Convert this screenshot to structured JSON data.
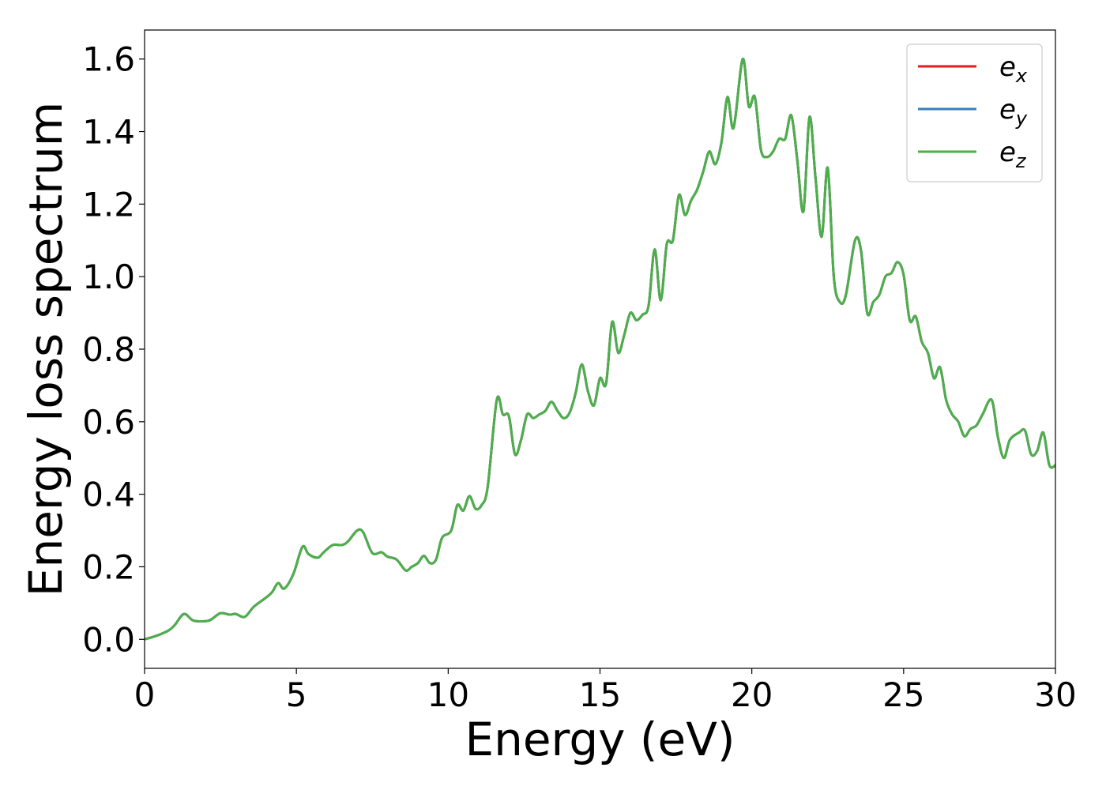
{
  "chart_data": {
    "type": "line",
    "title": "",
    "xlabel": "Energy (eV)",
    "ylabel": "Energy loss spectrum",
    "xlim": [
      0,
      30
    ],
    "ylim": [
      -0.08,
      1.68
    ],
    "x_ticks": [
      0,
      5,
      10,
      15,
      20,
      25,
      30
    ],
    "x_tick_labels": [
      "0",
      "5",
      "10",
      "15",
      "20",
      "25",
      "30"
    ],
    "y_ticks": [
      0.0,
      0.2,
      0.4,
      0.6,
      0.8,
      1.0,
      1.2,
      1.4,
      1.6
    ],
    "y_tick_labels": [
      "0.0",
      "0.2",
      "0.4",
      "0.6",
      "0.8",
      "1.0",
      "1.2",
      "1.4",
      "1.6"
    ],
    "grid": false,
    "legend_position": "top-right",
    "legend": [
      {
        "base": "e",
        "sub": "x"
      },
      {
        "base": "e",
        "sub": "y"
      },
      {
        "base": "e",
        "sub": "z"
      }
    ],
    "x": [
      0,
      0.4,
      0.8,
      1.0,
      1.3,
      1.6,
      2.0,
      2.2,
      2.5,
      2.8,
      3.0,
      3.3,
      3.6,
      4.0,
      4.2,
      4.4,
      4.6,
      4.9,
      5.2,
      5.4,
      5.7,
      5.9,
      6.2,
      6.5,
      6.7,
      7.0,
      7.2,
      7.5,
      7.8,
      8.0,
      8.3,
      8.6,
      8.8,
      9.0,
      9.2,
      9.4,
      9.6,
      9.8,
      10.1,
      10.3,
      10.5,
      10.7,
      10.9,
      11.1,
      11.3,
      11.6,
      11.8,
      12.0,
      12.2,
      12.4,
      12.6,
      12.8,
      13.0,
      13.2,
      13.4,
      13.6,
      13.8,
      14.0,
      14.2,
      14.4,
      14.6,
      14.8,
      15.0,
      15.2,
      15.4,
      15.6,
      15.8,
      16.0,
      16.2,
      16.4,
      16.6,
      16.8,
      17.0,
      17.2,
      17.4,
      17.6,
      17.8,
      18.0,
      18.2,
      18.4,
      18.6,
      18.8,
      19.0,
      19.2,
      19.4,
      19.7,
      19.9,
      20.1,
      20.3,
      20.5,
      20.7,
      20.9,
      21.1,
      21.3,
      21.5,
      21.7,
      21.9,
      22.1,
      22.3,
      22.5,
      22.7,
      22.9,
      23.1,
      23.4,
      23.6,
      23.8,
      24.0,
      24.2,
      24.4,
      24.6,
      24.8,
      25.0,
      25.2,
      25.4,
      25.6,
      25.8,
      26.0,
      26.2,
      26.4,
      26.6,
      26.8,
      27.0,
      27.2,
      27.4,
      27.6,
      27.9,
      28.1,
      28.3,
      28.5,
      28.8,
      29.0,
      29.2,
      29.4,
      29.6,
      29.8,
      30.0
    ],
    "series": [
      {
        "name": "e_x",
        "color": "#e41a1c",
        "values": [
          0.0,
          0.01,
          0.025,
          0.04,
          0.07,
          0.052,
          0.05,
          0.055,
          0.072,
          0.068,
          0.07,
          0.062,
          0.09,
          0.115,
          0.13,
          0.155,
          0.14,
          0.18,
          0.255,
          0.235,
          0.225,
          0.24,
          0.26,
          0.26,
          0.27,
          0.3,
          0.295,
          0.238,
          0.24,
          0.228,
          0.22,
          0.19,
          0.2,
          0.21,
          0.23,
          0.21,
          0.22,
          0.28,
          0.3,
          0.37,
          0.355,
          0.395,
          0.36,
          0.37,
          0.42,
          0.66,
          0.62,
          0.615,
          0.51,
          0.55,
          0.62,
          0.61,
          0.62,
          0.63,
          0.655,
          0.63,
          0.61,
          0.625,
          0.68,
          0.758,
          0.685,
          0.645,
          0.72,
          0.705,
          0.875,
          0.79,
          0.84,
          0.9,
          0.88,
          0.895,
          0.92,
          1.075,
          0.935,
          1.09,
          1.1,
          1.225,
          1.17,
          1.21,
          1.24,
          1.29,
          1.345,
          1.31,
          1.37,
          1.495,
          1.41,
          1.6,
          1.47,
          1.495,
          1.35,
          1.33,
          1.345,
          1.38,
          1.38,
          1.445,
          1.32,
          1.18,
          1.44,
          1.27,
          1.11,
          1.3,
          1.0,
          0.93,
          0.95,
          1.1,
          1.07,
          0.9,
          0.93,
          0.95,
          1.0,
          1.01,
          1.04,
          1.005,
          0.88,
          0.89,
          0.82,
          0.79,
          0.72,
          0.75,
          0.66,
          0.62,
          0.6,
          0.56,
          0.58,
          0.59,
          0.62,
          0.66,
          0.56,
          0.5,
          0.55,
          0.57,
          0.575,
          0.51,
          0.52,
          0.57,
          0.48,
          0.48
        ]
      },
      {
        "name": "e_y",
        "color": "#377eb8",
        "values": [
          0.0,
          0.01,
          0.025,
          0.04,
          0.07,
          0.052,
          0.05,
          0.055,
          0.072,
          0.068,
          0.07,
          0.062,
          0.09,
          0.115,
          0.13,
          0.155,
          0.14,
          0.18,
          0.255,
          0.235,
          0.225,
          0.24,
          0.26,
          0.26,
          0.27,
          0.3,
          0.295,
          0.238,
          0.24,
          0.228,
          0.22,
          0.19,
          0.2,
          0.21,
          0.23,
          0.21,
          0.22,
          0.28,
          0.3,
          0.37,
          0.355,
          0.395,
          0.36,
          0.37,
          0.42,
          0.66,
          0.62,
          0.615,
          0.51,
          0.55,
          0.62,
          0.61,
          0.62,
          0.63,
          0.655,
          0.63,
          0.61,
          0.625,
          0.68,
          0.758,
          0.685,
          0.645,
          0.72,
          0.705,
          0.875,
          0.79,
          0.84,
          0.9,
          0.88,
          0.895,
          0.92,
          1.075,
          0.935,
          1.09,
          1.1,
          1.225,
          1.17,
          1.21,
          1.24,
          1.29,
          1.345,
          1.31,
          1.37,
          1.495,
          1.41,
          1.6,
          1.47,
          1.495,
          1.35,
          1.33,
          1.345,
          1.38,
          1.38,
          1.445,
          1.32,
          1.18,
          1.44,
          1.27,
          1.11,
          1.3,
          1.0,
          0.93,
          0.95,
          1.1,
          1.07,
          0.9,
          0.93,
          0.95,
          1.0,
          1.01,
          1.04,
          1.005,
          0.88,
          0.89,
          0.82,
          0.79,
          0.72,
          0.75,
          0.66,
          0.62,
          0.6,
          0.56,
          0.58,
          0.59,
          0.62,
          0.66,
          0.56,
          0.5,
          0.55,
          0.57,
          0.575,
          0.51,
          0.52,
          0.57,
          0.48,
          0.48
        ]
      },
      {
        "name": "e_z",
        "color": "#4daf4a",
        "values": [
          0.0,
          0.01,
          0.025,
          0.04,
          0.07,
          0.052,
          0.05,
          0.055,
          0.072,
          0.068,
          0.07,
          0.062,
          0.09,
          0.115,
          0.13,
          0.155,
          0.14,
          0.18,
          0.255,
          0.235,
          0.225,
          0.24,
          0.26,
          0.26,
          0.27,
          0.3,
          0.295,
          0.238,
          0.24,
          0.228,
          0.22,
          0.19,
          0.2,
          0.21,
          0.23,
          0.21,
          0.22,
          0.28,
          0.3,
          0.37,
          0.355,
          0.395,
          0.36,
          0.37,
          0.42,
          0.66,
          0.62,
          0.615,
          0.51,
          0.55,
          0.62,
          0.61,
          0.62,
          0.63,
          0.655,
          0.63,
          0.61,
          0.625,
          0.68,
          0.758,
          0.685,
          0.645,
          0.72,
          0.705,
          0.875,
          0.79,
          0.84,
          0.9,
          0.88,
          0.895,
          0.92,
          1.075,
          0.935,
          1.09,
          1.1,
          1.225,
          1.17,
          1.21,
          1.24,
          1.29,
          1.345,
          1.31,
          1.37,
          1.495,
          1.41,
          1.6,
          1.47,
          1.495,
          1.35,
          1.33,
          1.345,
          1.38,
          1.38,
          1.445,
          1.32,
          1.18,
          1.44,
          1.27,
          1.11,
          1.3,
          1.0,
          0.93,
          0.95,
          1.1,
          1.07,
          0.9,
          0.93,
          0.95,
          1.0,
          1.01,
          1.04,
          1.005,
          0.88,
          0.89,
          0.82,
          0.79,
          0.72,
          0.75,
          0.66,
          0.62,
          0.6,
          0.56,
          0.58,
          0.59,
          0.62,
          0.66,
          0.56,
          0.5,
          0.55,
          0.57,
          0.575,
          0.51,
          0.52,
          0.57,
          0.48,
          0.48
        ]
      }
    ]
  }
}
